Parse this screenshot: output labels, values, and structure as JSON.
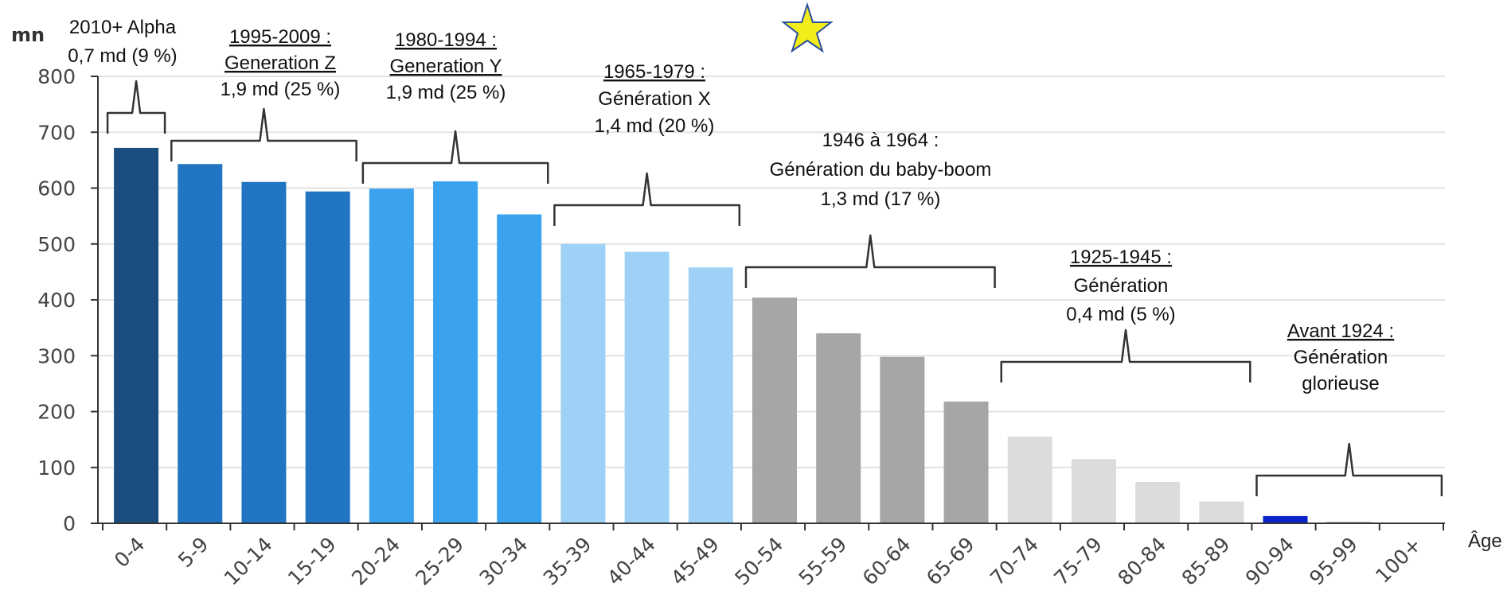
{
  "chart_data": {
    "type": "bar",
    "ylabel": "mn",
    "xlabel": "Âge",
    "ylim": [
      0,
      800
    ],
    "yticks": [
      "0",
      "100",
      "200",
      "300",
      "400",
      "500",
      "600",
      "700",
      "800"
    ],
    "grid": true,
    "categories": [
      "0-4",
      "5-9",
      "10-14",
      "15-19",
      "20-24",
      "25-29",
      "30-34",
      "35-39",
      "40-44",
      "45-49",
      "50-54",
      "55-59",
      "60-64",
      "65-69",
      "70-74",
      "75-79",
      "80-84",
      "85-89",
      "90-94",
      "95-99",
      "100+"
    ],
    "values": [
      672,
      643,
      611,
      594,
      599,
      612,
      553,
      500,
      486,
      458,
      404,
      340,
      298,
      218,
      155,
      115,
      74,
      39,
      13,
      3,
      0.5
    ],
    "bar_colors": [
      "#1b4d7e",
      "#2275c2",
      "#2275c2",
      "#2275c2",
      "#3aa2ee",
      "#3aa2ee",
      "#3aa2ee",
      "#9fd1f7",
      "#9fd1f7",
      "#9fd1f7",
      "#a6a6a6",
      "#a6a6a6",
      "#a6a6a6",
      "#a6a6a6",
      "#dcdcdc",
      "#dcdcdc",
      "#dcdcdc",
      "#dcdcdc",
      "#0b22c8",
      "#bbbbbb",
      "#bbbbbb"
    ],
    "annotations": [
      {
        "lines": [
          "2010+ Alpha",
          "0,7 md (9 %)"
        ],
        "colors": [
          "#1f4e79",
          "#111111"
        ],
        "underline": [
          false,
          false
        ]
      },
      {
        "lines": [
          "1995-2009 :",
          "Generation Z",
          "1,9 md (25 %)"
        ],
        "colors": [
          "#555f68",
          "#555f68",
          "#111111"
        ],
        "underline": [
          true,
          true,
          false
        ]
      },
      {
        "lines": [
          "1980-1994 :",
          "Generation Y",
          "1,9 md (25 %)"
        ],
        "colors": [
          "#555f68",
          "#555f68",
          "#111111"
        ],
        "underline": [
          true,
          true,
          false
        ]
      },
      {
        "lines": [
          "1965-1979 :",
          "Génération X",
          "1,4 md (20 %)"
        ],
        "colors": [
          "#6aaee6",
          "#6aaee6",
          "#111111"
        ],
        "underline": [
          true,
          false,
          false
        ]
      },
      {
        "lines": [
          "1946 à 1964 :",
          "Génération du baby-boom",
          "1,3 md (17 %)"
        ],
        "colors": [
          "#111111",
          "#111111",
          "#111111"
        ],
        "underline": [
          false,
          false,
          false
        ]
      },
      {
        "lines": [
          "1925-1945 :",
          "Génération",
          "0,4 md (5 %)"
        ],
        "colors": [
          "#111111",
          "#111111",
          "#111111"
        ],
        "underline": [
          true,
          false,
          false
        ]
      },
      {
        "lines": [
          "Avant 1924 :",
          "Génération",
          "glorieuse"
        ],
        "colors": [
          "#2d3a9a",
          "#2d3a9a",
          "#2d3a9a"
        ],
        "underline": [
          true,
          false,
          false
        ]
      }
    ],
    "star_color": "#f2ec1a"
  }
}
